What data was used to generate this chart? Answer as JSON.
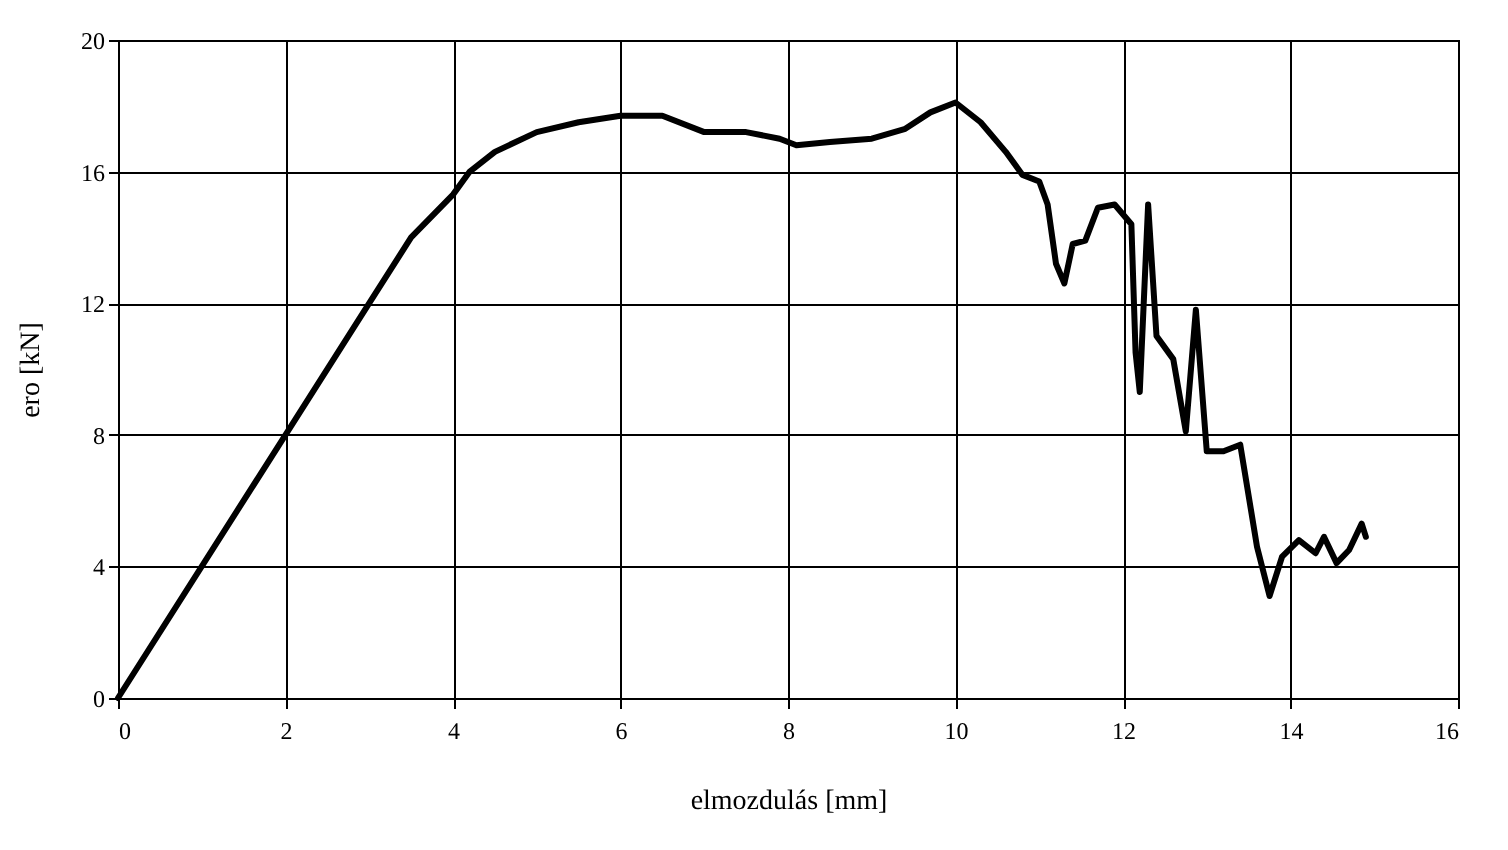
{
  "chart_data": {
    "type": "line",
    "xlabel": "elmozdulás [mm]",
    "ylabel": "ero [kN]",
    "xlim": [
      0,
      16
    ],
    "xticks": [
      0,
      2,
      4,
      6,
      8,
      10,
      12,
      14,
      16
    ],
    "ylim": [
      0,
      20
    ],
    "yticks": [
      0,
      4,
      8,
      12,
      16,
      20
    ],
    "grid": true,
    "series": [
      {
        "color": "#000000",
        "x": [
          0,
          2,
          3,
          3.5,
          4,
          4.2,
          4.5,
          5,
          5.5,
          6,
          6.5,
          7,
          7.5,
          7.9,
          8.1,
          8.5,
          9,
          9.4,
          9.7,
          10,
          10.3,
          10.6,
          10.8,
          11,
          11.1,
          11.2,
          11.3,
          11.4,
          11.55,
          11.7,
          11.9,
          12.1,
          12.15,
          12.2,
          12.3,
          12.4,
          12.6,
          12.75,
          12.87,
          13,
          13.2,
          13.4,
          13.6,
          13.75,
          13.9,
          14.1,
          14.3,
          14.4,
          14.55,
          14.7,
          14.85,
          14.9
        ],
        "values": [
          0,
          8,
          12,
          14,
          15.3,
          16,
          16.6,
          17.2,
          17.5,
          17.7,
          17.7,
          17.2,
          17.2,
          17,
          16.8,
          16.9,
          17,
          17.3,
          17.8,
          18.1,
          17.5,
          16.6,
          15.9,
          15.7,
          15,
          13.2,
          12.6,
          13.8,
          13.9,
          14.9,
          15,
          14.4,
          10.5,
          9.3,
          15,
          11,
          10.3,
          8.1,
          11.8,
          7.5,
          7.5,
          7.7,
          4.6,
          3.1,
          4.3,
          4.8,
          4.4,
          4.9,
          4.1,
          4.5,
          5.3,
          4.9
        ]
      }
    ]
  }
}
